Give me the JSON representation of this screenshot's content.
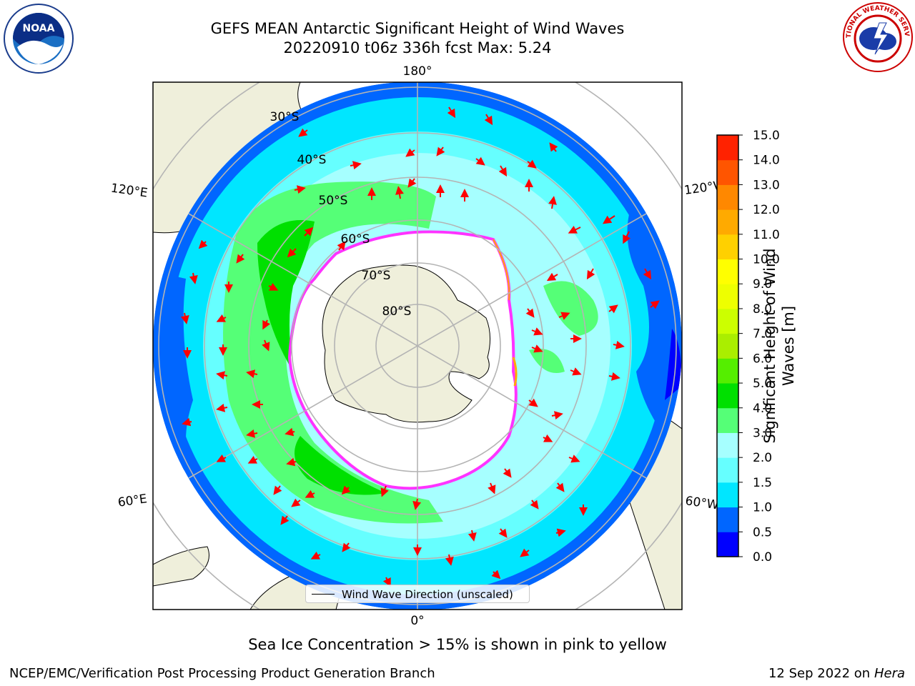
{
  "title": {
    "line1": "GEFS MEAN Antarctic Significant Height of Wind Waves",
    "line2": "20220910 t06z 336h fcst   Max: 5.24"
  },
  "logos": {
    "left": "NOAA",
    "right": "NATIONAL WEATHER SERVICE"
  },
  "map": {
    "projection": "south-polar-stereographic",
    "longitude_labels": [
      "180°",
      "120°E",
      "120°W",
      "60°E",
      "60°W",
      "0°"
    ],
    "latitude_labels": [
      "30°S",
      "40°S",
      "50°S",
      "60°S",
      "70°S",
      "80°S"
    ],
    "legend_label": "Wind Wave Direction (unscaled)",
    "colors": {
      "land": "#efefdb",
      "arrow": "#ff0000",
      "grid": "#b4b4b4",
      "ice_edge": "#ff33ff"
    }
  },
  "colorbar": {
    "label": "Significant Height of Wind Waves [m]",
    "ticks": [
      "0.0",
      "0.5",
      "1.0",
      "1.5",
      "2.0",
      "3.0",
      "4.0",
      "5.0",
      "6.0",
      "7.0",
      "8.0",
      "9.0",
      "10.0",
      "11.0",
      "12.0",
      "13.0",
      "14.0",
      "15.0"
    ],
    "colors": [
      "#0000ff",
      "#0066ff",
      "#00e6ff",
      "#66ffff",
      "#a6ffff",
      "#55ff77",
      "#00e000",
      "#55ee00",
      "#aaee00",
      "#ccff00",
      "#eeff00",
      "#ffff00",
      "#ffd000",
      "#ffaa00",
      "#ff8800",
      "#ff5500",
      "#ff2200"
    ]
  },
  "footer": {
    "note": "Sea Ice Concentration > 15% is shown in pink to yellow",
    "credit": "NCEP/EMC/Verification Post Processing Product Generation Branch",
    "date": "12 Sep 2022 on",
    "machine": "Hera"
  }
}
